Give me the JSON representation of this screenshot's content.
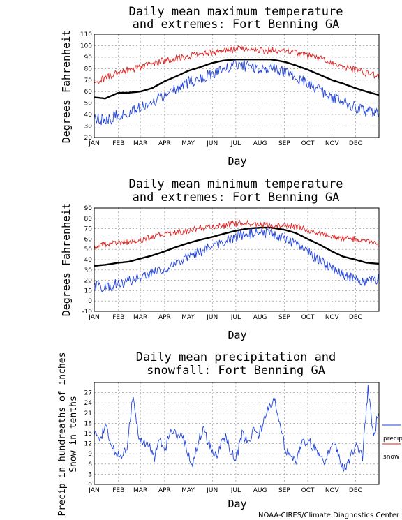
{
  "footer": "NOAA-CIRES/Climate Diagnostics Center",
  "colors": {
    "mean": "#000000",
    "upper": "#dd2222",
    "lower": "#2244dd",
    "snow": "#dd2222",
    "grid": "#888888"
  },
  "chart_data": [
    {
      "type": "line",
      "title": [
        "Daily mean maximum temperature",
        "and extremes: Fort Benning GA"
      ],
      "xlabel": "Day",
      "ylabel": [
        "Degrees Fahrenheit"
      ],
      "months": [
        "JAN",
        "FEB",
        "MAR",
        "APR",
        "MAY",
        "JUN",
        "JUL",
        "AUG",
        "SEP",
        "OCT",
        "NOV",
        "DEC"
      ],
      "ylim": [
        20,
        110
      ],
      "yticks": [
        20,
        30,
        40,
        50,
        60,
        70,
        80,
        90,
        100,
        110
      ],
      "grid": true,
      "series": [
        {
          "role": "mean",
          "x": [
            1,
            15,
            32,
            45,
            60,
            75,
            91,
            105,
            121,
            135,
            152,
            166,
            182,
            196,
            213,
            227,
            244,
            258,
            274,
            288,
            305,
            319,
            335,
            349,
            365
          ],
          "y": [
            55,
            54,
            59,
            59,
            60,
            63,
            69,
            73,
            78,
            81,
            85,
            87,
            88,
            88,
            88,
            88,
            86,
            83,
            79,
            75,
            70,
            67,
            63,
            60,
            57
          ]
        },
        {
          "role": "upper",
          "x": [
            1,
            15,
            32,
            45,
            60,
            75,
            91,
            105,
            121,
            135,
            152,
            166,
            182,
            196,
            213,
            227,
            244,
            258,
            274,
            288,
            305,
            319,
            335,
            349,
            365
          ],
          "y": [
            68,
            72,
            77,
            79,
            81,
            84,
            87,
            89,
            91,
            92,
            94,
            95,
            97,
            97,
            96,
            96,
            95,
            94,
            92,
            89,
            85,
            82,
            79,
            76,
            73
          ]
        },
        {
          "role": "lower",
          "x": [
            1,
            15,
            32,
            45,
            60,
            75,
            91,
            105,
            121,
            135,
            152,
            166,
            182,
            196,
            213,
            227,
            244,
            258,
            274,
            288,
            305,
            319,
            335,
            349,
            365
          ],
          "y": [
            38,
            34,
            40,
            41,
            46,
            50,
            57,
            62,
            68,
            71,
            75,
            79,
            83,
            82,
            81,
            80,
            77,
            73,
            67,
            62,
            55,
            52,
            46,
            43,
            41
          ]
        }
      ]
    },
    {
      "type": "line",
      "title": [
        "Daily mean minimum temperature",
        "and extremes: Fort Benning GA"
      ],
      "xlabel": "Day",
      "ylabel": [
        "Degrees Fahrenheit"
      ],
      "months": [
        "JAN",
        "FEB",
        "MAR",
        "APR",
        "MAY",
        "JUN",
        "JUL",
        "AUG",
        "SEP",
        "OCT",
        "NOV",
        "DEC"
      ],
      "ylim": [
        -10,
        90
      ],
      "yticks": [
        -10,
        0,
        10,
        20,
        30,
        40,
        50,
        60,
        70,
        80,
        90
      ],
      "grid": true,
      "series": [
        {
          "role": "mean",
          "x": [
            1,
            15,
            32,
            45,
            60,
            75,
            91,
            105,
            121,
            135,
            152,
            166,
            182,
            196,
            213,
            227,
            244,
            258,
            274,
            288,
            305,
            319,
            335,
            349,
            365
          ],
          "y": [
            34,
            35,
            37,
            38,
            41,
            44,
            48,
            52,
            56,
            59,
            62,
            65,
            68,
            70,
            71,
            71,
            69,
            66,
            60,
            55,
            48,
            43,
            40,
            37,
            36
          ]
        },
        {
          "role": "upper",
          "x": [
            1,
            15,
            32,
            45,
            60,
            75,
            91,
            105,
            121,
            135,
            152,
            166,
            182,
            196,
            213,
            227,
            244,
            258,
            274,
            288,
            305,
            319,
            335,
            349,
            365
          ],
          "y": [
            52,
            55,
            57,
            57,
            59,
            62,
            65,
            66,
            68,
            70,
            72,
            73,
            75,
            75,
            74,
            73,
            73,
            72,
            69,
            66,
            63,
            61,
            60,
            58,
            55
          ]
        },
        {
          "role": "lower",
          "x": [
            1,
            15,
            32,
            45,
            60,
            75,
            91,
            105,
            121,
            135,
            152,
            166,
            182,
            196,
            213,
            227,
            244,
            258,
            274,
            288,
            305,
            319,
            335,
            349,
            365
          ],
          "y": [
            15,
            13,
            17,
            19,
            24,
            27,
            31,
            36,
            43,
            47,
            53,
            58,
            62,
            65,
            66,
            66,
            60,
            55,
            48,
            40,
            31,
            25,
            21,
            18,
            22
          ]
        }
      ]
    },
    {
      "type": "line",
      "title": [
        "Daily mean precipitation and",
        "snowfall: Fort Benning GA"
      ],
      "xlabel": "Day",
      "ylabel": [
        "Precip in hundreaths of inches",
        "Snow in tenths"
      ],
      "months": [
        "JAN",
        "FEB",
        "MAR",
        "APR",
        "MAY",
        "JUN",
        "JUL",
        "AUG",
        "SEP",
        "OCT",
        "NOV",
        "DEC"
      ],
      "ylim": [
        0,
        30
      ],
      "yticks": [
        0,
        3,
        6,
        9,
        12,
        15,
        18,
        21,
        24,
        27
      ],
      "grid": true,
      "legend": [
        "precip",
        "snow"
      ],
      "series": [
        {
          "role": "precip",
          "x": [
            1,
            8,
            15,
            22,
            29,
            36,
            43,
            50,
            57,
            64,
            71,
            78,
            85,
            92,
            99,
            106,
            113,
            120,
            127,
            134,
            141,
            148,
            155,
            162,
            169,
            176,
            183,
            190,
            197,
            204,
            211,
            218,
            225,
            232,
            239,
            246,
            253,
            260,
            267,
            274,
            281,
            288,
            295,
            302,
            309,
            316,
            323,
            330,
            337,
            344,
            351,
            358,
            365
          ],
          "y": [
            15,
            13,
            17,
            12,
            9,
            8,
            11,
            26,
            15,
            12,
            11,
            8,
            13,
            10,
            17,
            14,
            15,
            9,
            6,
            13,
            16,
            12,
            8,
            11,
            14,
            9,
            8,
            15,
            12,
            16,
            14,
            19,
            23,
            25,
            16,
            10,
            8,
            7,
            12,
            13,
            11,
            9,
            7,
            10,
            12,
            6,
            5,
            9,
            12,
            8,
            28,
            14,
            22
          ]
        },
        {
          "role": "snow",
          "x": [
            1,
            365
          ],
          "y": [
            0,
            0
          ]
        }
      ]
    }
  ]
}
